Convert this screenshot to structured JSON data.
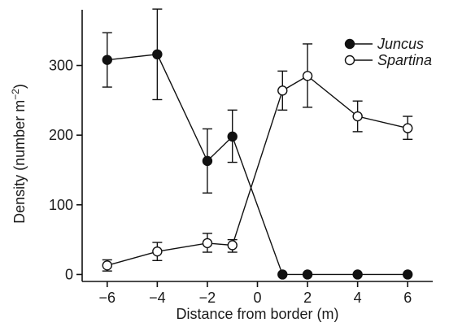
{
  "chart_data": {
    "type": "line",
    "title": "",
    "xlabel": "Distance from border (m)",
    "ylabel": "Density (number m",
    "ylabel_superscript": "−2",
    "ylabel_close": ")",
    "xlim": [
      -7,
      7
    ],
    "ylim": [
      -10,
      380
    ],
    "x_ticks": [
      -6,
      -4,
      -2,
      0,
      2,
      4,
      6
    ],
    "x_tick_labels": [
      "−6",
      "−4",
      "−2",
      "0",
      "2",
      "4",
      "6"
    ],
    "y_ticks": [
      0,
      100,
      200,
      300
    ],
    "y_tick_labels": [
      "0",
      "100",
      "200",
      "300"
    ],
    "grid": false,
    "legend_position": "top-right",
    "series": [
      {
        "name": "Juncus",
        "marker": "filled-circle",
        "color": "#111111",
        "x": [
          -6,
          -4,
          -2,
          -1,
          1,
          2,
          4,
          6
        ],
        "y": [
          308,
          316,
          163,
          198,
          0,
          0,
          0,
          0
        ],
        "err_low": [
          269,
          251,
          117,
          161,
          0,
          0,
          0,
          0
        ],
        "err_high": [
          347,
          381,
          209,
          236,
          0,
          0,
          0,
          0
        ]
      },
      {
        "name": "Spartina",
        "marker": "open-circle",
        "color": "#111111",
        "x": [
          -6,
          -4,
          -2,
          -1,
          1,
          2,
          4,
          6
        ],
        "y": [
          13,
          33,
          45,
          42,
          264,
          285,
          227,
          210
        ],
        "err_low": [
          5,
          20,
          32,
          32,
          236,
          240,
          205,
          194
        ],
        "err_high": [
          21,
          46,
          59,
          50,
          292,
          331,
          249,
          227
        ]
      }
    ]
  }
}
